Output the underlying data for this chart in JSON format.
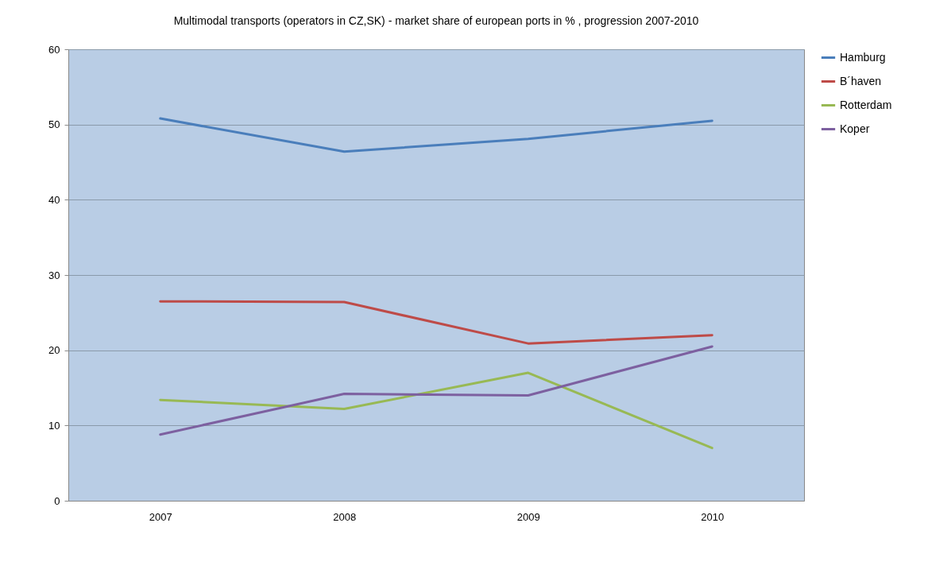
{
  "chart_data": {
    "type": "line",
    "title": "Multimodal transports (operators in CZ,SK) - market share of european ports in % , progression 2007-2010",
    "categories": [
      "2007",
      "2008",
      "2009",
      "2010"
    ],
    "series": [
      {
        "name": "Hamburg",
        "color": "#4a7ebb",
        "values": [
          50.8,
          46.4,
          48.1,
          50.5
        ]
      },
      {
        "name": "B´haven",
        "color": "#be4b48",
        "values": [
          26.5,
          26.4,
          20.9,
          22.0
        ]
      },
      {
        "name": "Rotterdam",
        "color": "#98b954",
        "values": [
          13.4,
          12.2,
          17.0,
          7.0
        ]
      },
      {
        "name": "Koper",
        "color": "#7d60a0",
        "values": [
          8.8,
          14.2,
          14.0,
          20.5
        ]
      }
    ],
    "ylim": [
      0,
      60
    ],
    "yticks": [
      0,
      10,
      20,
      30,
      40,
      50,
      60
    ],
    "grid": "y",
    "legend": "right",
    "marker": "none",
    "line_style": "solid"
  }
}
